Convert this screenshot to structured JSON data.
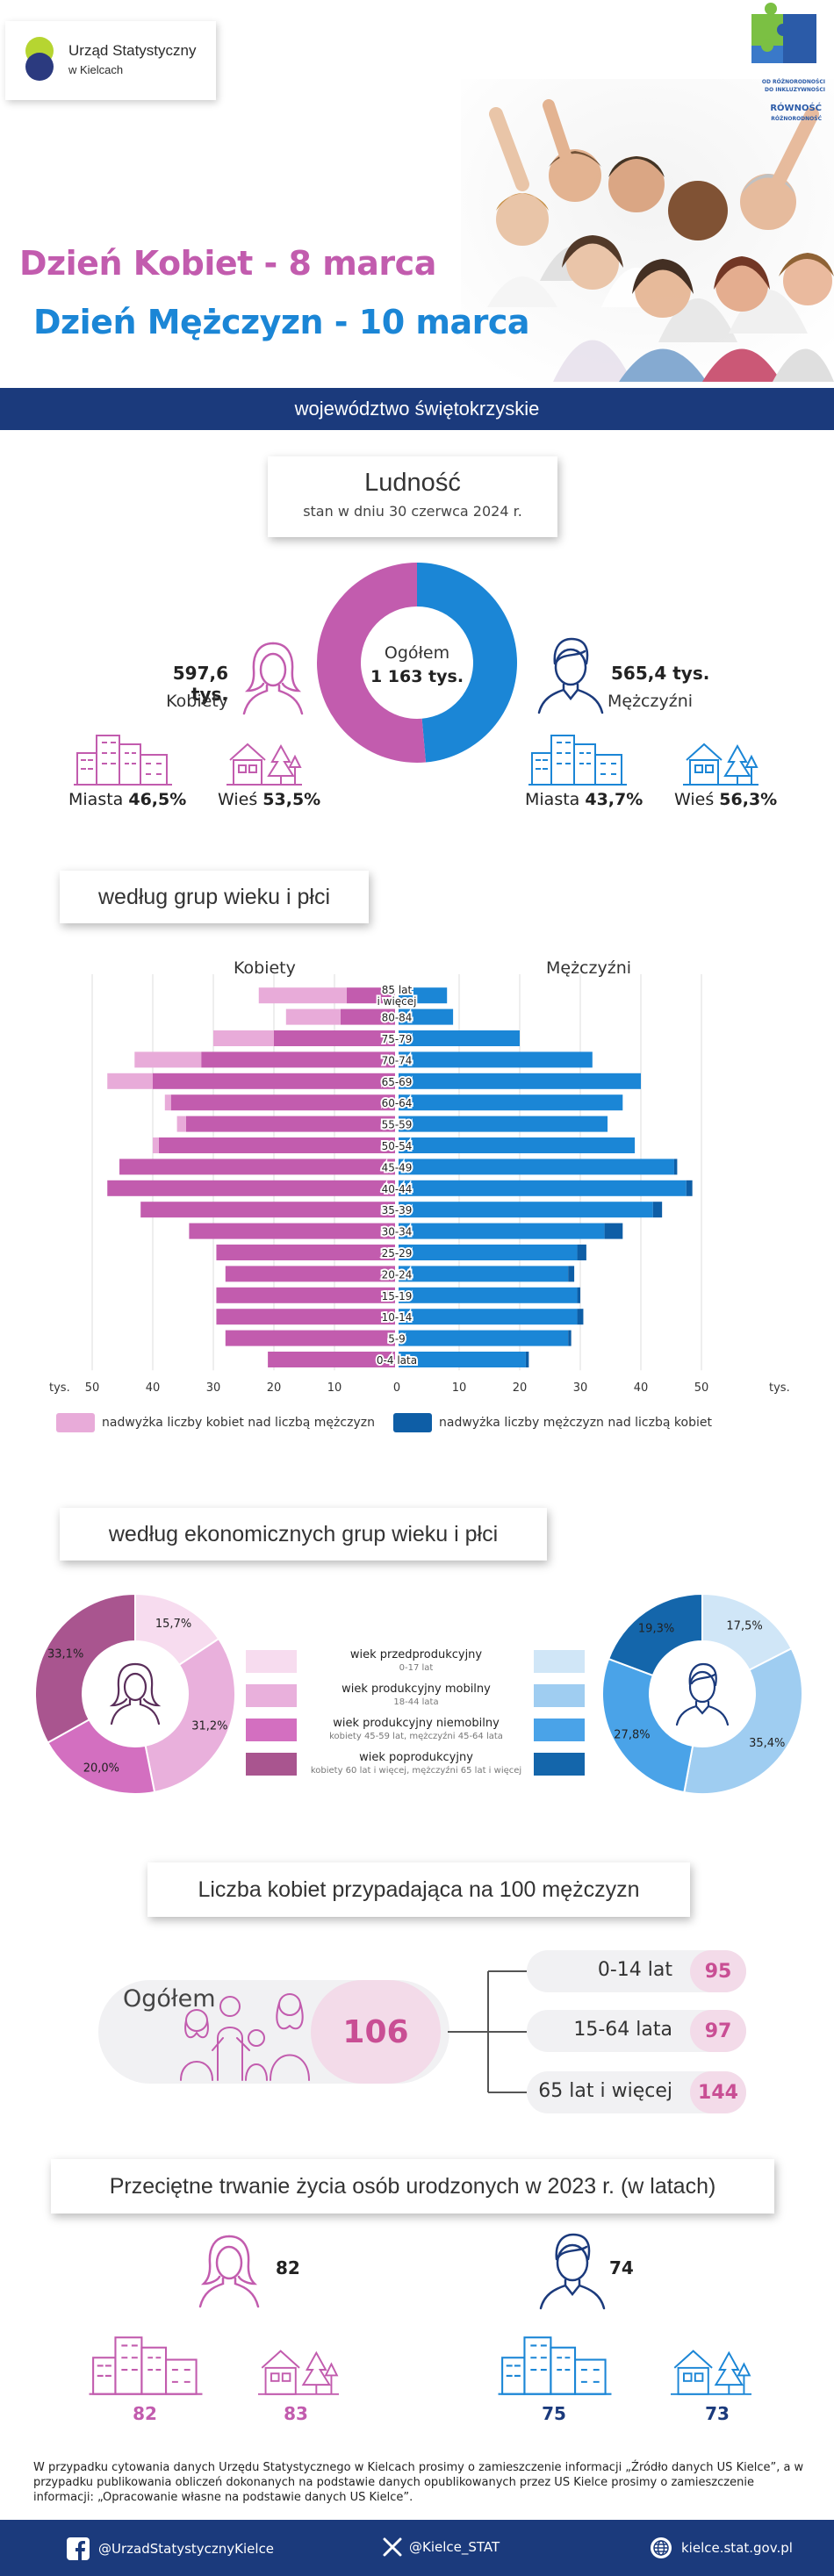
{
  "header": {
    "logo_line1": "Urząd Statystyczny",
    "logo_line2": "w Kielcach",
    "title_women": "Dzień Kobiet - 8 marca",
    "title_men": "Dzień Mężczyzn - 10 marca",
    "badge_line1": "OD RÓŻNORODNOŚCI",
    "badge_line2": "DO INKLUZYWNOŚCI",
    "badge_line3": "RÓWNOŚĆ",
    "badge_line4": "RÓŻNORODNOŚĆ",
    "region": "województwo świętokrzyskie"
  },
  "population": {
    "title": "Ludność",
    "subtitle": "stan w dniu 30 czerwca 2024 r.",
    "total_label": "Ogółem",
    "total_value": "1 163 tys.",
    "women_value": "597,6 tys.",
    "women_label": "Kobiety",
    "men_value": "565,4 tys.",
    "men_label": "Mężczyźni",
    "women_share": 51.4,
    "city_label": "Miasta",
    "village_label": "Wieś",
    "women_city": "46,5%",
    "women_village": "53,5%",
    "men_city": "43,7%",
    "men_village": "56,3%",
    "color_women": "#c25cae",
    "color_men": "#1b86d6"
  },
  "pyramid": {
    "title": "według grup wieku i płci",
    "women_label": "Kobiety",
    "men_label": "Mężczyźni",
    "unit": "tys.",
    "legend_women": "nadwyżka liczby kobiet nad liczbą mężczyzn",
    "legend_men": "nadwyżka liczby mężczyzn nad liczbą kobiet"
  },
  "chart_data": {
    "type": "bar",
    "orientation": "horizontal-pyramid",
    "categories": [
      "85 lat i więcej",
      "80-84",
      "75-79",
      "70-74",
      "65-69",
      "60-64",
      "55-59",
      "50-54",
      "45-49",
      "40-44",
      "35-39",
      "30-34",
      "25-29",
      "20-24",
      "15-19",
      "10-14",
      "5-9",
      "0-4 lata"
    ],
    "series": [
      {
        "name": "Kobiety",
        "values": [
          22.5,
          18.0,
          30.0,
          43.0,
          47.5,
          38.0,
          36.0,
          40.0,
          45.5,
          47.5,
          42.0,
          34.0,
          29.5,
          28.0,
          29.5,
          29.5,
          28.0,
          21.0
        ]
      },
      {
        "name": "Mężczyźni",
        "values": [
          8.0,
          9.0,
          20.0,
          32.0,
          40.0,
          37.0,
          34.5,
          39.0,
          46.0,
          48.5,
          43.5,
          37.0,
          31.0,
          29.0,
          30.0,
          30.5,
          28.5,
          21.5
        ]
      }
    ],
    "xlim": [
      0,
      50
    ],
    "ticks": [
      50,
      40,
      30,
      20,
      10,
      0,
      10,
      20,
      30,
      40,
      50
    ],
    "colors": {
      "women": "#c25cae",
      "women_surplus": "#e8abd9",
      "men": "#1b86d6",
      "men_surplus": "#0e5ea6"
    }
  },
  "economic": {
    "title": "według ekonomicznych grup wieku i płci",
    "legend": [
      {
        "label": "wiek przedprodukcyjny",
        "sub": "0-17 lat"
      },
      {
        "label": "wiek produkcyjny mobilny",
        "sub": "18-44 lata"
      },
      {
        "label": "wiek produkcyjny niemobilny",
        "sub": "kobiety 45-59 lat, mężczyźni 45-64 lata"
      },
      {
        "label": "wiek poprodukcyjny",
        "sub": "kobiety 60 lat i więcej, mężczyźni 65 lat i więcej"
      }
    ],
    "women_shares": [
      15.7,
      31.2,
      20.0,
      33.1
    ],
    "women_labels": [
      "15,7%",
      "31,2%",
      "20,0%",
      "33,1%"
    ],
    "men_shares": [
      17.5,
      35.4,
      27.8,
      19.3
    ],
    "men_labels": [
      "17,5%",
      "35,4%",
      "27,8%",
      "19,3%"
    ],
    "women_colors": [
      "#f7dcef",
      "#e9b0dc",
      "#d36fc0",
      "#a9558f"
    ],
    "men_colors": [
      "#d0e6f7",
      "#9fcdf1",
      "#4aa3e8",
      "#1466ab"
    ]
  },
  "ratio": {
    "title": "Liczba kobiet przypadająca na 100 mężczyzn",
    "total_label": "Ogółem",
    "total_value": "106",
    "groups": [
      {
        "label": "0-14 lat",
        "value": "95"
      },
      {
        "label": "15-64 lata",
        "value": "97"
      },
      {
        "label": "65 lat i więcej",
        "value": "144"
      }
    ]
  },
  "life": {
    "title": "Przeciętne trwanie życia osób urodzonych w 2023 r. (w latach)",
    "women_total": "82",
    "women_city": "82",
    "women_village": "83",
    "men_total": "74",
    "men_city": "75",
    "men_village": "73"
  },
  "footer": {
    "note": "W przypadku cytowania danych Urzędu Statystycznego w Kielcach prosimy o zamieszczenie informacji „Źródło danych US Kielce”, a w przypadku publikowania obliczeń dokonanych na podstawie danych opublikowanych przez US Kielce prosimy o zamieszczenie informacji: „Opracowanie własne na podstawie danych US Kielce”.",
    "facebook": "@UrzadStatystycznyKielce",
    "x": "@Kielce_STAT",
    "web": "kielce.stat.gov.pl"
  }
}
